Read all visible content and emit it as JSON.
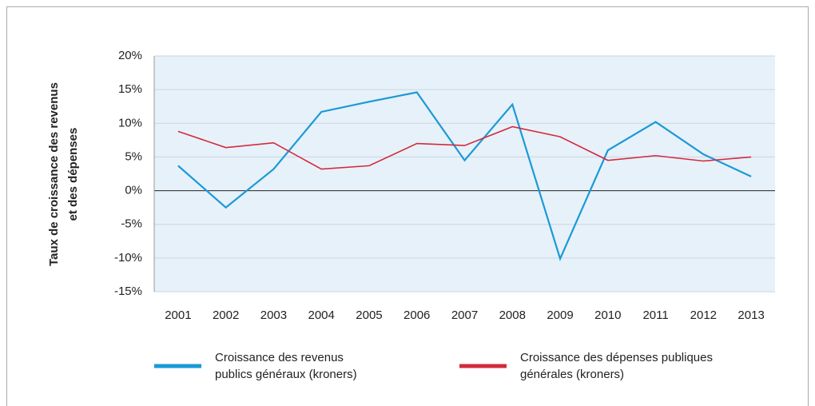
{
  "chart_data": {
    "type": "line",
    "ylabel": [
      "Taux de croissance des revenus",
      "et des dépenses"
    ],
    "categories": [
      "2001",
      "2002",
      "2003",
      "2004",
      "2005",
      "2006",
      "2007",
      "2008",
      "2009",
      "2010",
      "2011",
      "2012",
      "2013"
    ],
    "series": [
      {
        "name": "Croissance des revenus publics généraux (kroners)",
        "color": "#1a9ad6",
        "values": [
          3.7,
          -2.5,
          3.2,
          11.7,
          13.2,
          14.6,
          4.5,
          12.8,
          -10.1,
          6.0,
          10.2,
          5.4,
          2.1
        ]
      },
      {
        "name": "Croissance des dépenses publiques générales (kroners)",
        "color": "#d42a3c",
        "values": [
          8.8,
          6.4,
          7.1,
          3.2,
          3.7,
          7.0,
          6.7,
          9.5,
          8.0,
          4.5,
          5.2,
          4.4,
          5.0
        ]
      }
    ],
    "ylim": [
      -15,
      20
    ],
    "yticks": [
      {
        "value": -15,
        "label": "-15%"
      },
      {
        "value": -10,
        "label": "-10%"
      },
      {
        "value": -5,
        "label": "-5%"
      },
      {
        "value": 0,
        "label": "0%"
      },
      {
        "value": 5,
        "label": "5%"
      },
      {
        "value": 10,
        "label": "10%"
      },
      {
        "value": 15,
        "label": "15%"
      },
      {
        "value": 20,
        "label": "20%"
      }
    ],
    "grid": true
  }
}
